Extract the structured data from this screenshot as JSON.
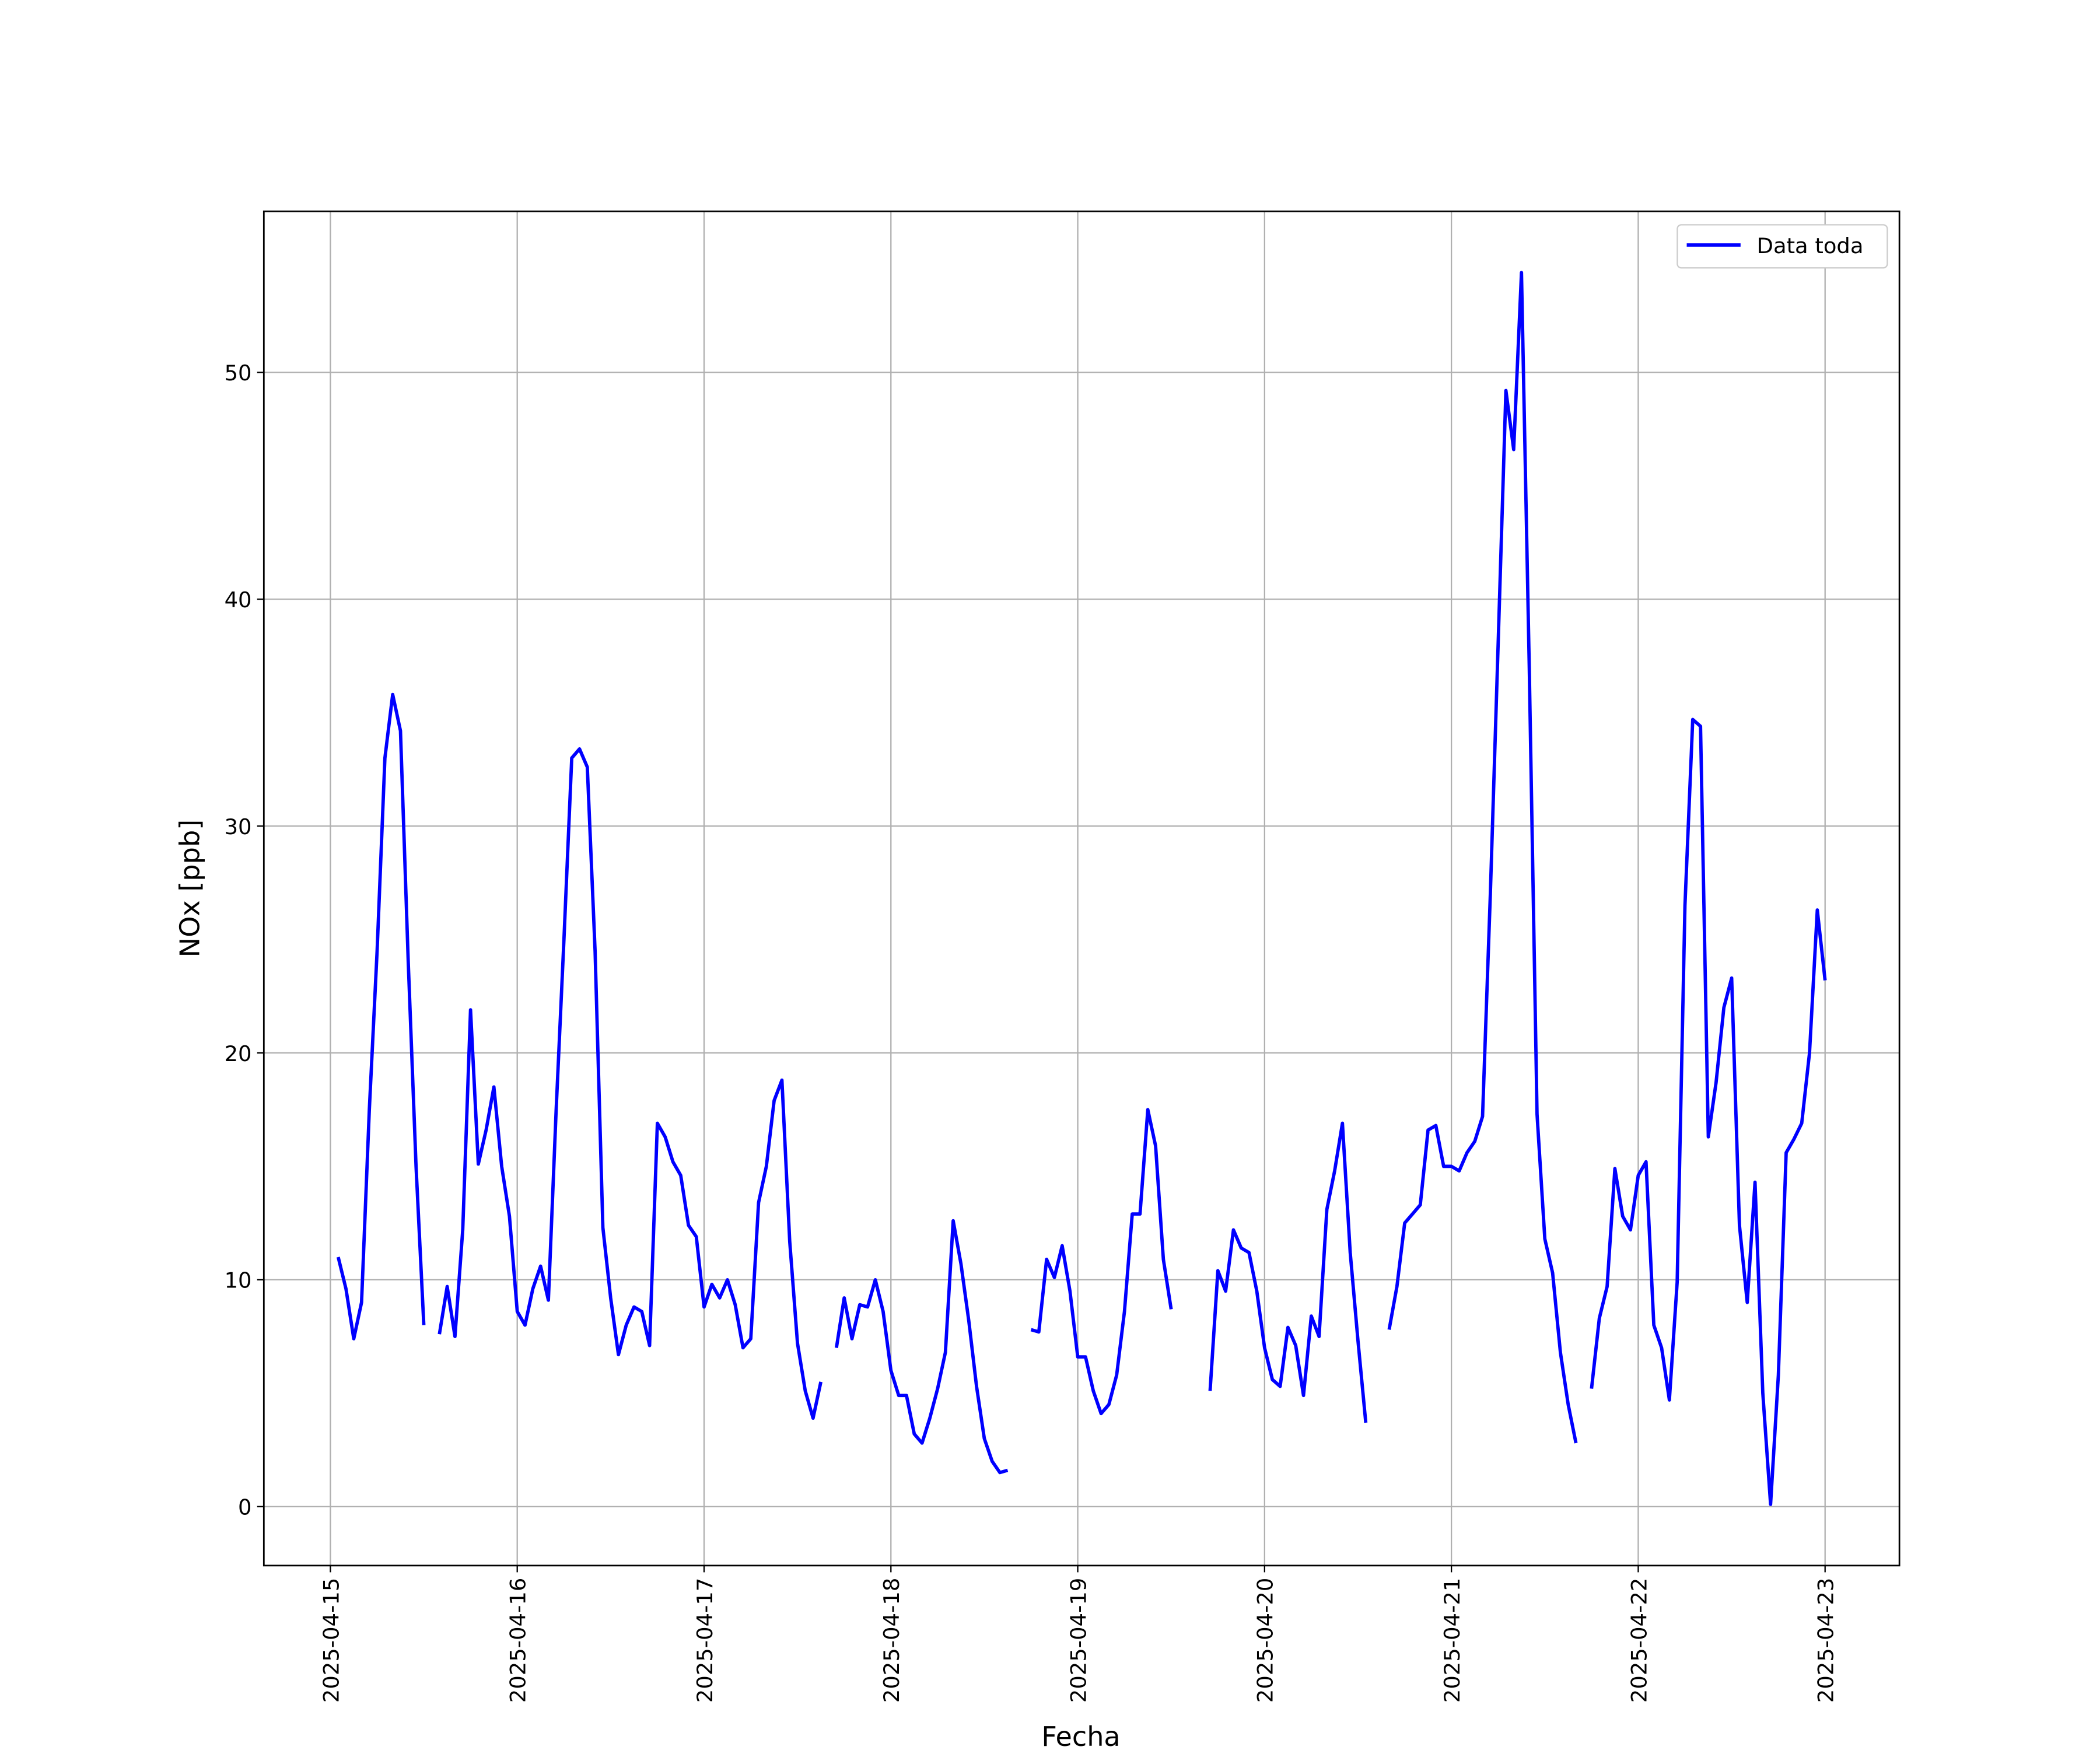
{
  "chart_data": {
    "type": "line",
    "xlabel": "Fecha",
    "ylabel": "NOx [ppb]",
    "xlim": [
      "2025-04-14T15:27",
      "2025-04-23T09:33"
    ],
    "ylim": [
      -2.6,
      57.1
    ],
    "xticks": [
      "2025-04-15",
      "2025-04-16",
      "2025-04-17",
      "2025-04-18",
      "2025-04-19",
      "2025-04-20",
      "2025-04-21",
      "2025-04-22",
      "2025-04-23"
    ],
    "yticks": [
      0,
      10,
      20,
      30,
      40,
      50
    ],
    "grid": true,
    "legend": "upper right",
    "x": [
      "2025-04-15T01:00",
      "2025-04-15T02:00",
      "2025-04-15T03:00",
      "2025-04-15T04:00",
      "2025-04-15T05:00",
      "2025-04-15T06:00",
      "2025-04-15T07:00",
      "2025-04-15T08:00",
      "2025-04-15T09:00",
      "2025-04-15T10:00",
      "2025-04-15T11:00",
      "2025-04-15T12:00",
      "2025-04-15T13:00",
      "2025-04-15T14:00",
      "2025-04-15T15:00",
      "2025-04-15T16:00",
      "2025-04-15T17:00",
      "2025-04-15T18:00",
      "2025-04-15T19:00",
      "2025-04-15T20:00",
      "2025-04-15T21:00",
      "2025-04-15T22:00",
      "2025-04-15T23:00",
      "2025-04-16T00:00",
      "2025-04-16T01:00",
      "2025-04-16T02:00",
      "2025-04-16T03:00",
      "2025-04-16T04:00",
      "2025-04-16T05:00",
      "2025-04-16T06:00",
      "2025-04-16T07:00",
      "2025-04-16T08:00",
      "2025-04-16T09:00",
      "2025-04-16T10:00",
      "2025-04-16T11:00",
      "2025-04-16T12:00",
      "2025-04-16T13:00",
      "2025-04-16T14:00",
      "2025-04-16T15:00",
      "2025-04-16T16:00",
      "2025-04-16T17:00",
      "2025-04-16T18:00",
      "2025-04-16T19:00",
      "2025-04-16T20:00",
      "2025-04-16T21:00",
      "2025-04-16T22:00",
      "2025-04-16T23:00",
      "2025-04-17T00:00",
      "2025-04-17T01:00",
      "2025-04-17T02:00",
      "2025-04-17T03:00",
      "2025-04-17T04:00",
      "2025-04-17T05:00",
      "2025-04-17T06:00",
      "2025-04-17T07:00",
      "2025-04-17T08:00",
      "2025-04-17T09:00",
      "2025-04-17T10:00",
      "2025-04-17T11:00",
      "2025-04-17T12:00",
      "2025-04-17T13:00",
      "2025-04-17T14:00",
      "2025-04-17T15:00",
      "2025-04-17T16:00",
      "2025-04-17T17:00",
      "2025-04-17T18:00",
      "2025-04-17T19:00",
      "2025-04-17T20:00",
      "2025-04-17T21:00",
      "2025-04-17T22:00",
      "2025-04-17T23:00",
      "2025-04-18T00:00",
      "2025-04-18T01:00",
      "2025-04-18T02:00",
      "2025-04-18T03:00",
      "2025-04-18T04:00",
      "2025-04-18T05:00",
      "2025-04-18T06:00",
      "2025-04-18T07:00",
      "2025-04-18T08:00",
      "2025-04-18T09:00",
      "2025-04-18T10:00",
      "2025-04-18T11:00",
      "2025-04-18T12:00",
      "2025-04-18T13:00",
      "2025-04-18T14:00",
      "2025-04-18T15:00",
      "2025-04-18T16:00",
      "2025-04-18T17:00",
      "2025-04-18T18:00",
      "2025-04-18T19:00",
      "2025-04-18T20:00",
      "2025-04-18T21:00",
      "2025-04-18T22:00",
      "2025-04-18T23:00",
      "2025-04-19T00:00",
      "2025-04-19T01:00",
      "2025-04-19T02:00",
      "2025-04-19T03:00",
      "2025-04-19T04:00",
      "2025-04-19T05:00",
      "2025-04-19T06:00",
      "2025-04-19T07:00",
      "2025-04-19T08:00",
      "2025-04-19T09:00",
      "2025-04-19T10:00",
      "2025-04-19T11:00",
      "2025-04-19T12:00",
      "2025-04-19T13:00",
      "2025-04-19T14:00",
      "2025-04-19T15:00",
      "2025-04-19T16:00",
      "2025-04-19T17:00",
      "2025-04-19T18:00",
      "2025-04-19T19:00",
      "2025-04-19T20:00",
      "2025-04-19T21:00",
      "2025-04-19T22:00",
      "2025-04-19T23:00",
      "2025-04-20T00:00",
      "2025-04-20T01:00",
      "2025-04-20T02:00",
      "2025-04-20T03:00",
      "2025-04-20T04:00",
      "2025-04-20T05:00",
      "2025-04-20T06:00",
      "2025-04-20T07:00",
      "2025-04-20T08:00",
      "2025-04-20T09:00",
      "2025-04-20T10:00",
      "2025-04-20T11:00",
      "2025-04-20T12:00",
      "2025-04-20T13:00",
      "2025-04-20T14:00",
      "2025-04-20T15:00",
      "2025-04-20T16:00",
      "2025-04-20T17:00",
      "2025-04-20T18:00",
      "2025-04-20T19:00",
      "2025-04-20T20:00",
      "2025-04-20T21:00",
      "2025-04-20T22:00",
      "2025-04-20T23:00",
      "2025-04-21T00:00",
      "2025-04-21T01:00",
      "2025-04-21T02:00",
      "2025-04-21T03:00",
      "2025-04-21T04:00",
      "2025-04-21T05:00",
      "2025-04-21T06:00",
      "2025-04-21T07:00",
      "2025-04-21T08:00",
      "2025-04-21T09:00",
      "2025-04-21T10:00",
      "2025-04-21T11:00",
      "2025-04-21T12:00",
      "2025-04-21T13:00",
      "2025-04-21T14:00",
      "2025-04-21T15:00",
      "2025-04-21T16:00",
      "2025-04-21T17:00",
      "2025-04-21T18:00",
      "2025-04-21T19:00",
      "2025-04-21T20:00",
      "2025-04-21T21:00",
      "2025-04-21T22:00",
      "2025-04-21T23:00",
      "2025-04-22T00:00",
      "2025-04-22T01:00",
      "2025-04-22T02:00",
      "2025-04-22T03:00",
      "2025-04-22T04:00",
      "2025-04-22T05:00",
      "2025-04-22T06:00",
      "2025-04-22T07:00",
      "2025-04-22T08:00",
      "2025-04-22T09:00",
      "2025-04-22T10:00",
      "2025-04-22T11:00",
      "2025-04-22T12:00",
      "2025-04-22T13:00",
      "2025-04-22T14:00",
      "2025-04-22T15:00",
      "2025-04-22T16:00",
      "2025-04-22T17:00",
      "2025-04-22T18:00",
      "2025-04-22T19:00",
      "2025-04-22T20:00",
      "2025-04-22T21:00",
      "2025-04-22T22:00",
      "2025-04-22T23:00",
      "2025-04-23T00:00"
    ],
    "series": [
      {
        "name": "Data toda",
        "color": "#0000ff",
        "values": [
          11.0,
          9.6,
          7.4,
          9.0,
          17.5,
          24.5,
          33.0,
          35.8,
          34.2,
          24.0,
          15.0,
          8.0,
          null,
          7.6,
          9.7,
          7.5,
          12.2,
          21.9,
          15.1,
          16.6,
          18.5,
          15.0,
          12.8,
          8.6,
          8.0,
          9.6,
          10.6,
          9.1,
          17.5,
          25.0,
          33.0,
          33.4,
          32.6,
          24.5,
          12.3,
          9.2,
          6.7,
          8.0,
          8.8,
          8.6,
          7.1,
          16.9,
          16.3,
          15.2,
          14.6,
          12.4,
          11.9,
          8.8,
          9.8,
          9.2,
          10.0,
          8.9,
          7.0,
          7.4,
          13.4,
          15.0,
          17.9,
          18.8,
          11.7,
          7.2,
          5.1,
          3.9,
          5.5,
          null,
          7.0,
          9.2,
          7.4,
          8.9,
          8.8,
          10.0,
          8.6,
          6.0,
          4.9,
          4.9,
          3.2,
          2.8,
          3.9,
          5.2,
          6.8,
          12.6,
          10.7,
          8.2,
          5.3,
          3.0,
          2.0,
          1.5,
          1.6,
          null,
          null,
          7.8,
          7.7,
          10.9,
          10.1,
          11.5,
          9.5,
          6.6,
          6.6,
          5.1,
          4.1,
          4.5,
          5.8,
          8.6,
          12.9,
          12.9,
          17.5,
          15.9,
          10.9,
          8.7,
          null,
          null,
          null,
          null,
          5.1,
          10.4,
          9.5,
          12.2,
          11.4,
          11.2,
          9.5,
          7.0,
          5.6,
          5.3,
          7.9,
          7.1,
          4.9,
          8.4,
          7.5,
          13.1,
          14.8,
          16.9,
          11.2,
          7.3,
          3.7,
          null,
          null,
          7.8,
          9.7,
          12.5,
          12.9,
          13.3,
          16.6,
          16.8,
          15.0,
          15.0,
          14.8,
          15.6,
          16.1,
          17.2,
          27.0,
          38.0,
          49.2,
          46.6,
          54.4,
          37.0,
          17.3,
          11.8,
          10.3,
          6.8,
          4.5,
          2.8,
          null,
          5.2,
          8.3,
          9.7,
          14.9,
          12.8,
          12.2,
          14.6,
          15.2,
          8.0,
          7.0,
          4.7,
          9.9,
          26.5,
          34.7,
          34.4,
          16.3,
          18.7,
          22.0,
          23.3,
          12.4,
          9.0,
          14.3,
          5.0,
          0.1,
          5.8,
          15.6,
          16.2,
          16.9,
          20.0,
          26.3,
          23.2
        ]
      }
    ]
  }
}
